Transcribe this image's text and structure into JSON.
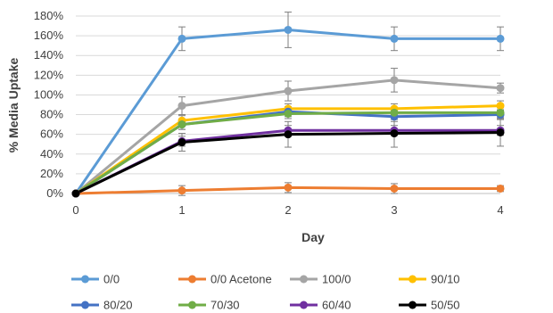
{
  "chart_data": {
    "type": "line",
    "title": "",
    "xlabel": "Day",
    "ylabel": "% Media Uptake",
    "x": [
      0,
      1,
      2,
      3,
      4
    ],
    "xticks": [
      "0",
      "1",
      "2",
      "3",
      "4"
    ],
    "xlim": [
      0,
      4
    ],
    "ylim": [
      0,
      180
    ],
    "yticks": [
      "0%",
      "20%",
      "40%",
      "60%",
      "80%",
      "100%",
      "120%",
      "140%",
      "160%",
      "180%"
    ],
    "grid": true,
    "legend_position": "bottom",
    "error_bars": true,
    "series": [
      {
        "name": "0/0",
        "color": "#5B9BD5",
        "values": [
          0,
          157,
          166,
          157,
          157
        ],
        "errors": [
          0,
          12,
          18,
          12,
          12
        ]
      },
      {
        "name": "0/0 Acetone",
        "color": "#ED7D31",
        "values": [
          0,
          3,
          6,
          5,
          5
        ],
        "errors": [
          0,
          5,
          5,
          5,
          3
        ]
      },
      {
        "name": "100/0",
        "color": "#A5A5A5",
        "values": [
          0,
          89,
          104,
          115,
          107
        ],
        "errors": [
          0,
          9,
          10,
          12,
          5
        ]
      },
      {
        "name": "90/10",
        "color": "#FFC000",
        "values": [
          0,
          74,
          86,
          86,
          89
        ],
        "errors": [
          0,
          5,
          5,
          5,
          5
        ]
      },
      {
        "name": "80/20",
        "color": "#4472C4",
        "values": [
          0,
          70,
          83,
          78,
          80
        ],
        "errors": [
          0,
          5,
          5,
          5,
          5
        ]
      },
      {
        "name": "70/30",
        "color": "#70AD47",
        "values": [
          0,
          70,
          81,
          82,
          82
        ],
        "errors": [
          0,
          5,
          5,
          5,
          5
        ]
      },
      {
        "name": "60/40",
        "color": "#7030A0",
        "values": [
          0,
          53,
          64,
          64,
          64
        ],
        "errors": [
          0,
          5,
          5,
          5,
          5
        ]
      },
      {
        "name": "50/50",
        "color": "#000000",
        "values": [
          0,
          52,
          60,
          61,
          62
        ],
        "errors": [
          0,
          9,
          13,
          14,
          14
        ]
      }
    ]
  }
}
